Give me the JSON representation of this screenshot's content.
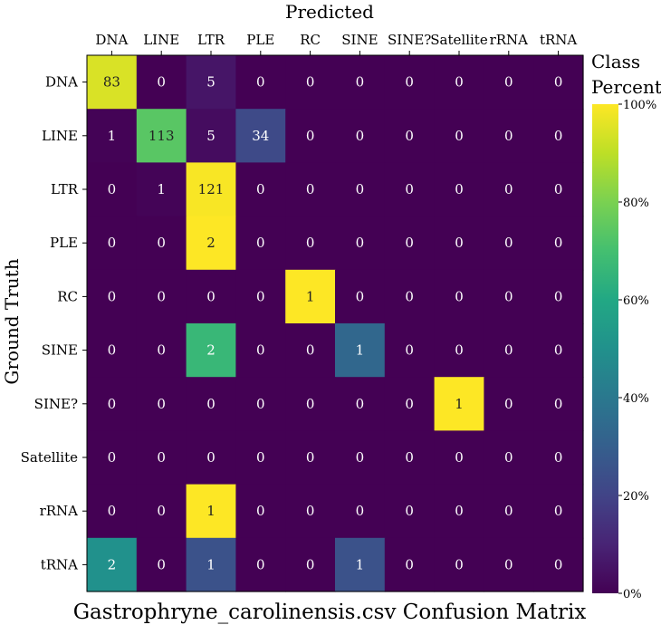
{
  "chart_data": {
    "type": "heatmap",
    "title": "Gastrophryne_carolinensis.csv Confusion Matrix",
    "xlabel": "Predicted",
    "ylabel": "Ground Truth",
    "x_categories": [
      "DNA",
      "LINE",
      "LTR",
      "PLE",
      "RC",
      "SINE",
      "SINE?",
      "Satellite",
      "rRNA",
      "tRNA"
    ],
    "y_categories": [
      "DNA",
      "LINE",
      "LTR",
      "PLE",
      "RC",
      "SINE",
      "SINE?",
      "Satellite",
      "rRNA",
      "tRNA"
    ],
    "counts": [
      [
        83,
        0,
        5,
        0,
        0,
        0,
        0,
        0,
        0,
        0
      ],
      [
        1,
        113,
        5,
        34,
        0,
        0,
        0,
        0,
        0,
        0
      ],
      [
        0,
        1,
        121,
        0,
        0,
        0,
        0,
        0,
        0,
        0
      ],
      [
        0,
        0,
        2,
        0,
        0,
        0,
        0,
        0,
        0,
        0
      ],
      [
        0,
        0,
        0,
        0,
        1,
        0,
        0,
        0,
        0,
        0
      ],
      [
        0,
        0,
        2,
        0,
        0,
        1,
        0,
        0,
        0,
        0
      ],
      [
        0,
        0,
        0,
        0,
        0,
        0,
        0,
        1,
        0,
        0
      ],
      [
        0,
        0,
        0,
        0,
        0,
        0,
        0,
        0,
        0,
        0
      ],
      [
        0,
        0,
        1,
        0,
        0,
        0,
        0,
        0,
        0,
        0
      ],
      [
        2,
        0,
        1,
        0,
        0,
        1,
        0,
        0,
        0,
        0
      ]
    ],
    "colorbar": {
      "title_line1": "Class",
      "title_line2": "Percent",
      "ticks": [
        "0%",
        "20%",
        "40%",
        "60%",
        "80%",
        "100%"
      ],
      "tick_values": [
        0,
        20,
        40,
        60,
        80,
        100
      ],
      "range": [
        0,
        100
      ],
      "colormap": "viridis"
    }
  }
}
